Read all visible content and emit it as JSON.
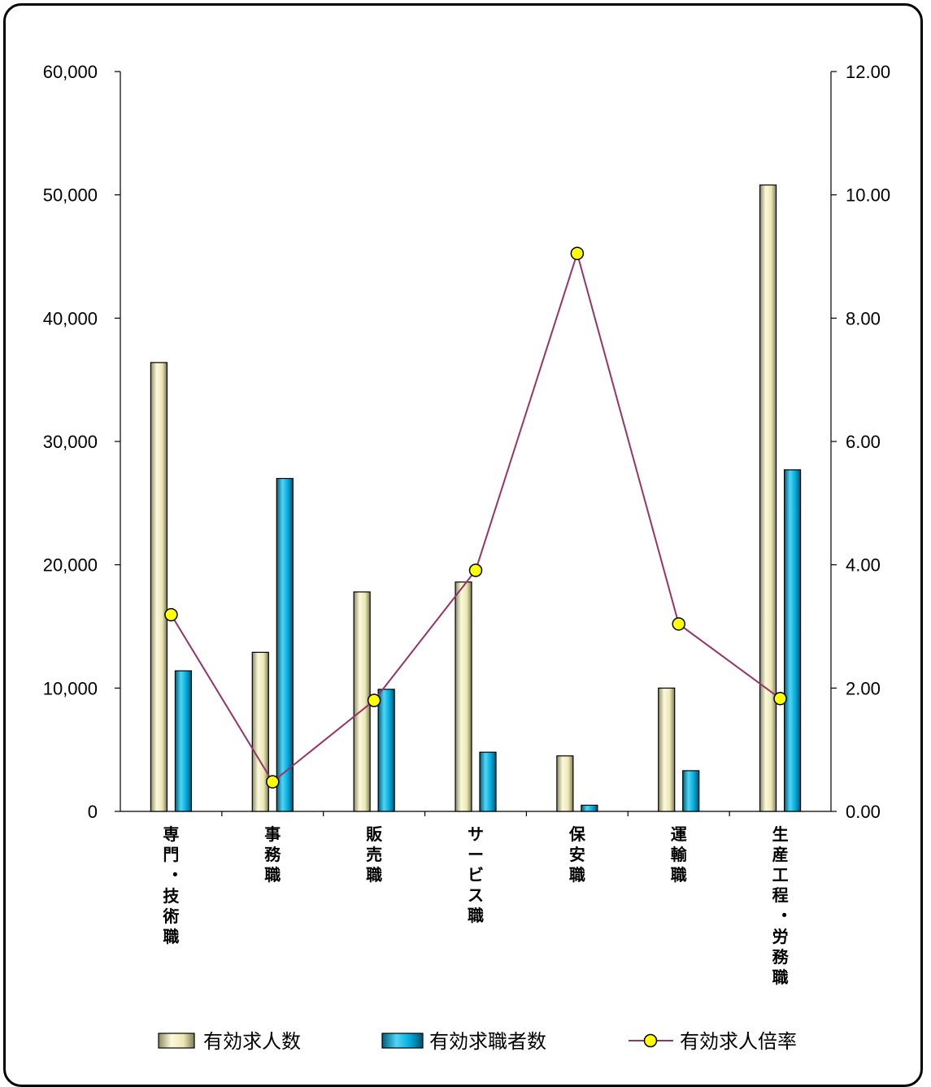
{
  "chart_data": {
    "type": "bar",
    "categories": [
      "専門・技術職",
      "事務職",
      "販売職",
      "サービス職",
      "保安職",
      "運輸職",
      "生産工程・労務職"
    ],
    "series": [
      {
        "name": "有効求人数",
        "kind": "bar",
        "axis": "left",
        "color": "#f4f1c4",
        "values": [
          36400,
          12900,
          17800,
          18600,
          4500,
          10000,
          50800
        ]
      },
      {
        "name": "有効求職者数",
        "kind": "bar",
        "axis": "left",
        "color": "#00a8d8",
        "values": [
          11400,
          27000,
          9900,
          4800,
          500,
          3300,
          27700
        ]
      },
      {
        "name": "有効求人倍率",
        "kind": "line",
        "axis": "right",
        "color": "#993366",
        "marker_color": "#ffff00",
        "values": [
          3.19,
          0.48,
          1.8,
          3.91,
          9.05,
          3.04,
          1.83
        ]
      }
    ],
    "left_axis": {
      "min": 0,
      "max": 60000,
      "ticks": [
        "0",
        "10,000",
        "20,000",
        "30,000",
        "40,000",
        "50,000",
        "60,000"
      ]
    },
    "right_axis": {
      "min": 0,
      "max": 12,
      "ticks": [
        "0.00",
        "2.00",
        "4.00",
        "6.00",
        "8.00",
        "10.00",
        "12.00"
      ]
    },
    "grid": false,
    "legend_position": "bottom"
  }
}
